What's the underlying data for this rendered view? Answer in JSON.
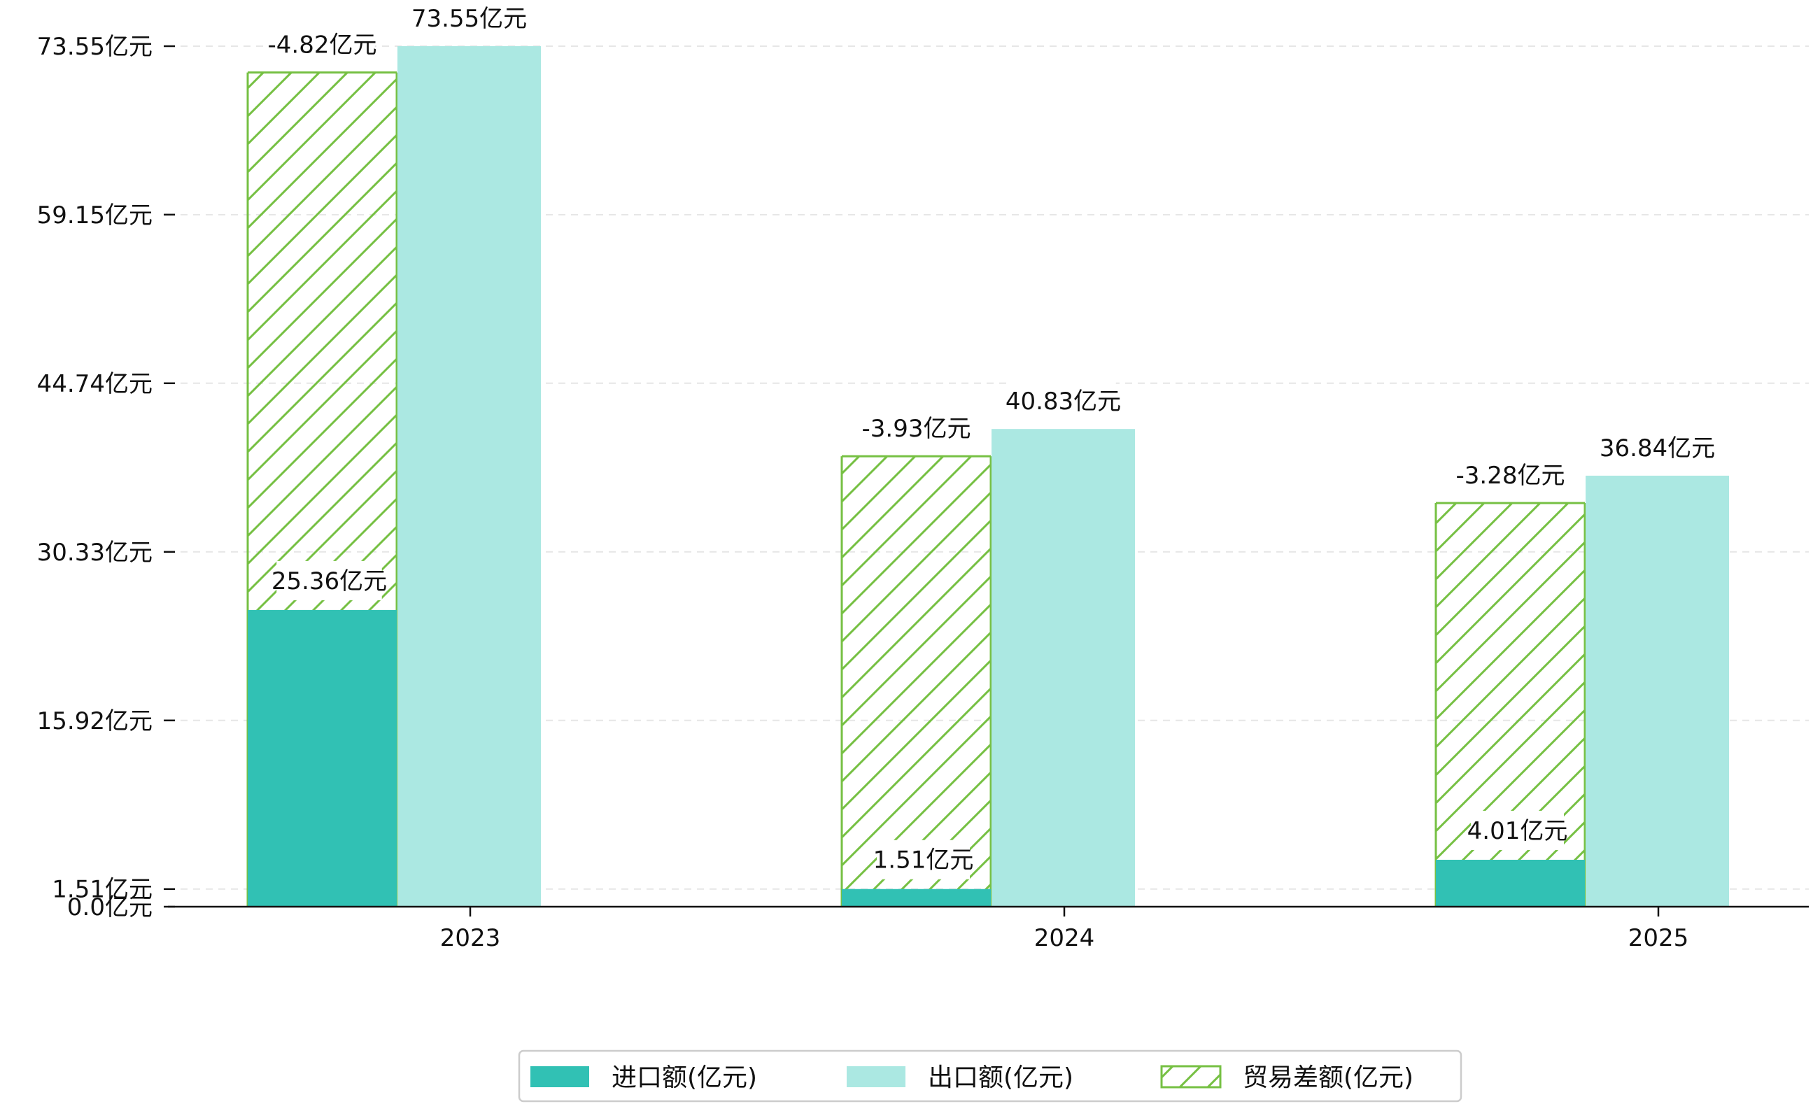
{
  "chart_data": {
    "type": "bar",
    "title": "",
    "xlabel": "",
    "ylabel": "",
    "categories": [
      "2023",
      "2024",
      "2025"
    ],
    "series": [
      {
        "name": "进口额(亿元)",
        "values": [
          25.36,
          1.51,
          4.01
        ],
        "labels": [
          "25.36亿元",
          "1.51亿元",
          "4.01亿元"
        ],
        "color": "#31c1b4"
      },
      {
        "name": "出口额(亿元)",
        "values": [
          73.55,
          40.83,
          36.84
        ],
        "labels": [
          "73.55亿元",
          "40.83亿元",
          "36.84亿元"
        ],
        "color": "#abe8e2"
      },
      {
        "name": "贸易差额(亿元)",
        "values": [
          -4.82,
          -3.93,
          -3.28
        ],
        "labels": [
          "-4.82亿元",
          "-3.93亿元",
          "-3.28亿元"
        ],
        "color": "#76c043",
        "hatch": true,
        "bar_top": [
          71.3,
          38.5,
          34.5
        ]
      }
    ],
    "yticks": [
      0.0,
      1.51,
      15.92,
      30.33,
      44.74,
      59.15,
      73.55
    ],
    "ytick_labels": [
      "0.0亿元",
      "1.51亿元",
      "15.92亿元",
      "30.33亿元",
      "44.74亿元",
      "59.15亿元",
      "73.55亿元"
    ],
    "ylim": [
      0,
      76
    ],
    "grid": "horizontal-dashed",
    "legend_position": "bottom-center"
  }
}
